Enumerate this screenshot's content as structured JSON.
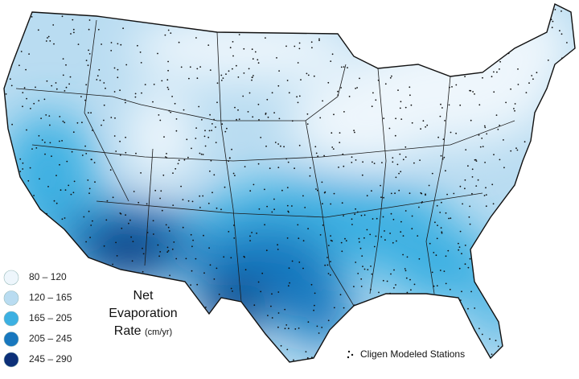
{
  "legend": {
    "items": [
      {
        "label": "80 – 120",
        "color": "#eef6fc"
      },
      {
        "label": "120 – 165",
        "color": "#b9dcf1"
      },
      {
        "label": "165 – 205",
        "color": "#3cb0e2"
      },
      {
        "label": "205 – 245",
        "color": "#1877be"
      },
      {
        "label": "245 – 290",
        "color": "#0c2f78"
      }
    ]
  },
  "title": {
    "lines": [
      "Net",
      "Evaporation",
      "Rate"
    ],
    "unit": "(cm/yr)"
  },
  "stations_label": "Cligen Modeled Stations"
}
